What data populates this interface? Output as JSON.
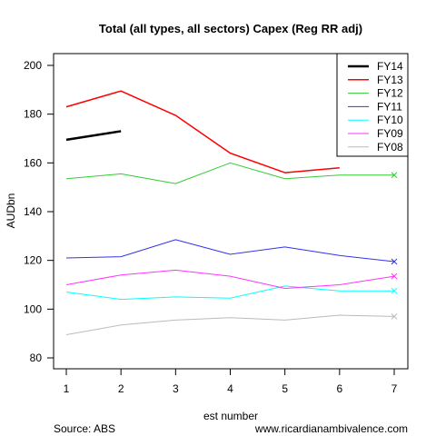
{
  "chart_data": {
    "type": "line",
    "title": "Total (all types, all sectors) Capex (Reg RR adj)",
    "xlabel": "est number",
    "ylabel": "AUDbn",
    "x": [
      1,
      2,
      3,
      4,
      5,
      6,
      7
    ],
    "xlim": [
      1,
      7
    ],
    "ylim": [
      80,
      200
    ],
    "yticks": [
      80,
      100,
      120,
      140,
      160,
      180,
      200
    ],
    "legend_position": "top-right",
    "series": [
      {
        "name": "FY14",
        "color": "#000000",
        "width": 2.5,
        "values": [
          169.5,
          173,
          null,
          null,
          null,
          null,
          null
        ]
      },
      {
        "name": "FY13",
        "color": "#ff0000",
        "width": 1.5,
        "values": [
          183,
          189.5,
          179.5,
          164,
          156,
          158,
          null
        ]
      },
      {
        "name": "FY12",
        "color": "#33cc33",
        "width": 1,
        "values": [
          153.5,
          155.5,
          151.5,
          160,
          153.5,
          155,
          155
        ]
      },
      {
        "name": "FY11",
        "color": "#3333ee",
        "width": 1,
        "values": [
          121,
          121.5,
          128.5,
          122.5,
          125.5,
          122,
          119.5
        ]
      },
      {
        "name": "FY10",
        "color": "#00ffff",
        "width": 1,
        "values": [
          107,
          104,
          105,
          104.5,
          109.5,
          107.5,
          107.5
        ]
      },
      {
        "name": "FY09",
        "color": "#ff33ff",
        "width": 1,
        "values": [
          110,
          114,
          116,
          113.5,
          108.5,
          110,
          113.5
        ]
      },
      {
        "name": "FY08",
        "color": "#bbbbbb",
        "width": 1,
        "values": [
          89.5,
          93.5,
          95.5,
          96.5,
          95.5,
          97.5,
          97
        ]
      }
    ]
  },
  "footer": {
    "source": "Source: ABS",
    "website": "www.ricardianambivalence.com"
  }
}
